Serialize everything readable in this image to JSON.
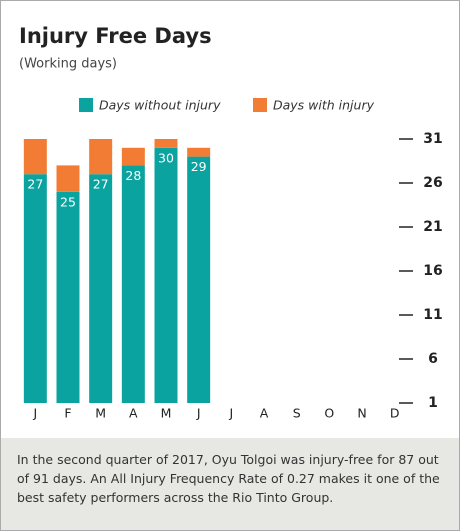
{
  "chart_data": {
    "type": "stacked_bar",
    "title": "Injury Free Days",
    "subtitle": "(Working days)",
    "categories": [
      "J",
      "F",
      "M",
      "A",
      "M",
      "J",
      "J",
      "A",
      "S",
      "O",
      "N",
      "D"
    ],
    "series": [
      {
        "name": "Days without injury",
        "color": "#0aa3a0",
        "values": [
          27,
          25,
          27,
          28,
          30,
          29,
          null,
          null,
          null,
          null,
          null,
          null
        ]
      },
      {
        "name": "Days with injury",
        "color": "#f37c34",
        "values": [
          4,
          3,
          4,
          2,
          1,
          1,
          null,
          null,
          null,
          null,
          null,
          null
        ]
      }
    ],
    "data_labels_series": "Days without injury",
    "ylim": [
      1,
      31
    ],
    "yticks": [
      1,
      6,
      11,
      16,
      21,
      26,
      31
    ],
    "y_axis_side": "right",
    "legend": "top",
    "caption": "In the second quarter of 2017, Oyu Tolgoi was injury-free for 87 out of 91 days. An All Injury Frequency Rate of 0.27 makes it one of the best safety performers across the Rio Tinto Group."
  }
}
